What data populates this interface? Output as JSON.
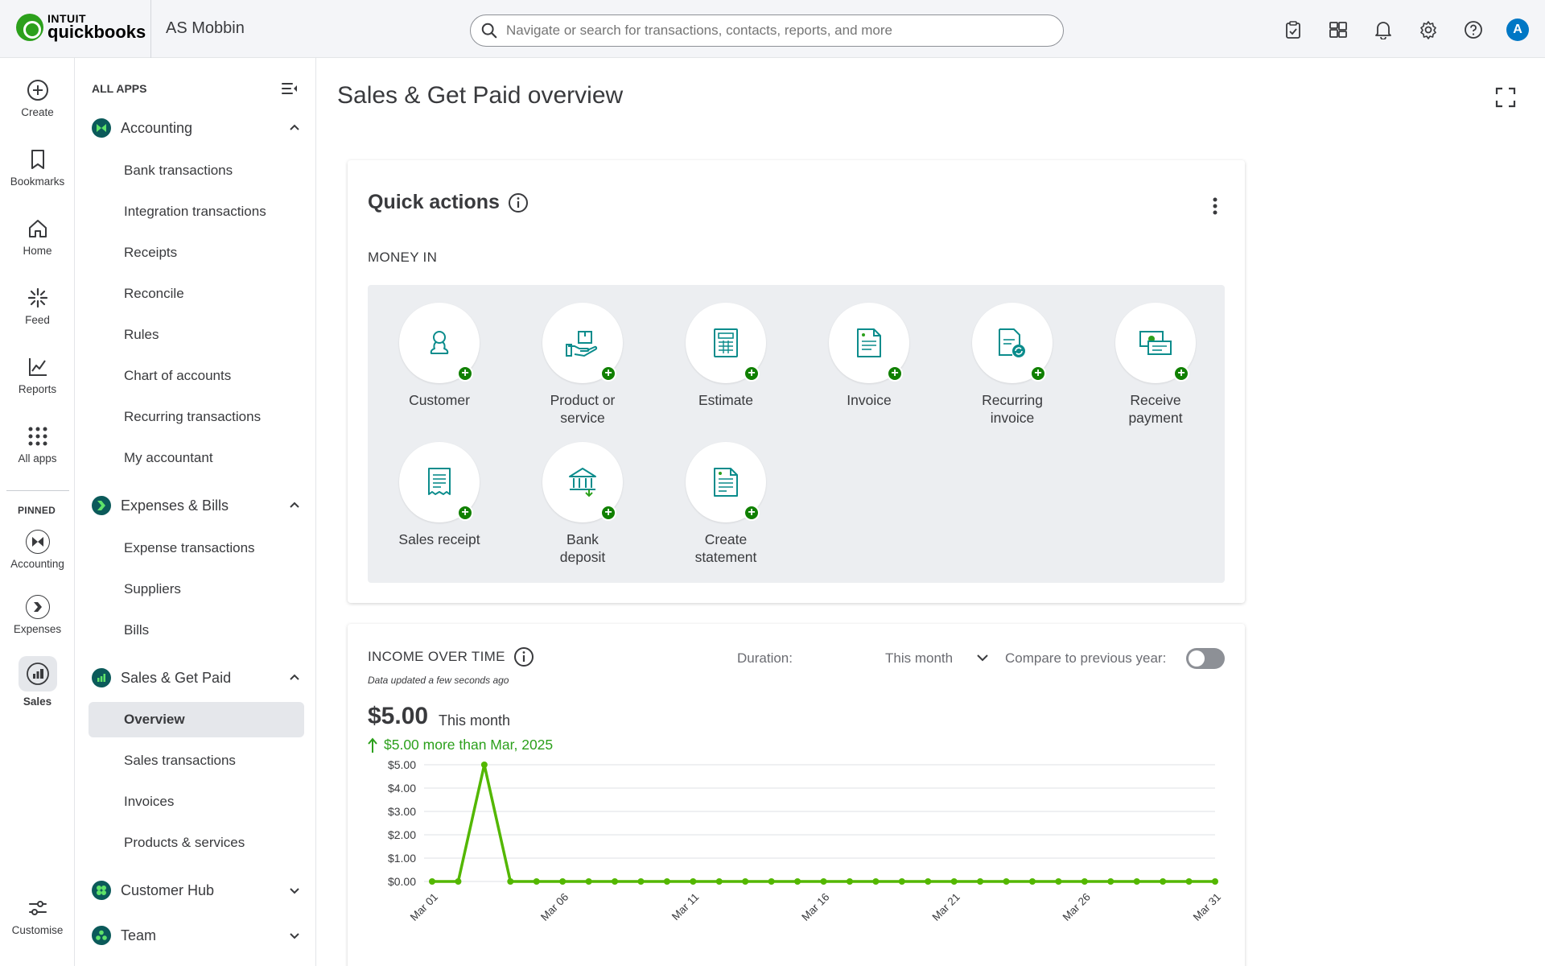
{
  "app": {
    "company": "AS Mobbin",
    "logo_top": "INTUIT",
    "logo_bottom": "quickbooks",
    "search_placeholder": "Navigate or search for transactions, contacts, reports, and more"
  },
  "rail": {
    "items": [
      {
        "label": "Create",
        "icon": "plus-circle-icon"
      },
      {
        "label": "Bookmarks",
        "icon": "bookmark-icon"
      },
      {
        "label": "Home",
        "icon": "home-icon"
      },
      {
        "label": "Feed",
        "icon": "feed-icon"
      },
      {
        "label": "Reports",
        "icon": "reports-icon"
      },
      {
        "label": "All apps",
        "icon": "grid-icon"
      }
    ],
    "pinned_label": "PINNED",
    "pinned": [
      {
        "label": "Accounting",
        "icon": "accounting-icon"
      },
      {
        "label": "Expenses",
        "icon": "expenses-icon"
      },
      {
        "label": "Sales",
        "icon": "sales-icon"
      }
    ],
    "customise": "Customise"
  },
  "sidebar": {
    "all_apps": "ALL APPS",
    "sections": [
      {
        "title": "Accounting",
        "color": "#1a3b4c",
        "items": [
          "Bank transactions",
          "Integration transactions",
          "Receipts",
          "Reconcile",
          "Rules",
          "Chart of accounts",
          "Recurring transactions",
          "My accountant"
        ]
      },
      {
        "title": "Expenses & Bills",
        "color": "#1a3b4c",
        "items": [
          "Expense transactions",
          "Suppliers",
          "Bills"
        ]
      },
      {
        "title": "Sales & Get Paid",
        "color": "#1a3b4c",
        "items": [
          "Overview",
          "Sales transactions",
          "Invoices",
          "Products & services"
        ]
      },
      {
        "title": "Customer Hub",
        "color": "#1a3b4c",
        "items": []
      },
      {
        "title": "Team",
        "color": "#1a3b4c",
        "items": []
      }
    ],
    "active_item": "Overview"
  },
  "main": {
    "title": "Sales & Get Paid overview",
    "quick_actions": {
      "title": "Quick actions",
      "section": "MONEY IN",
      "items": [
        {
          "label": "Customer",
          "icon": "customer-icon"
        },
        {
          "label": "Product or service",
          "icon": "product-icon"
        },
        {
          "label": "Estimate",
          "icon": "estimate-icon"
        },
        {
          "label": "Invoice",
          "icon": "invoice-icon"
        },
        {
          "label": "Recurring invoice",
          "icon": "recurring-invoice-icon"
        },
        {
          "label": "Receive payment",
          "icon": "receive-payment-icon"
        },
        {
          "label": "Sales receipt",
          "icon": "sales-receipt-icon"
        },
        {
          "label": "Bank deposit",
          "icon": "bank-deposit-icon"
        },
        {
          "label": "Create statement",
          "icon": "statement-icon"
        }
      ]
    },
    "income": {
      "title": "INCOME OVER TIME",
      "updated": "Data updated a few seconds ago",
      "duration_label": "Duration:",
      "duration_value": "This month",
      "compare_label": "Compare to previous year:",
      "compare_enabled": false,
      "amount": "$5.00",
      "amount_period": "This month",
      "comparison": "$5.00 more than Mar, 2025"
    }
  },
  "colors": {
    "brand_green": "#2ca01c",
    "plus_green": "#108000",
    "teal": "#0b8c8c",
    "text": "#393a3d"
  },
  "chart_data": {
    "type": "line",
    "x": [
      "Mar 01",
      "Mar 02",
      "Mar 03",
      "Mar 04",
      "Mar 05",
      "Mar 06",
      "Mar 07",
      "Mar 08",
      "Mar 09",
      "Mar 10",
      "Mar 11",
      "Mar 12",
      "Mar 13",
      "Mar 14",
      "Mar 15",
      "Mar 16",
      "Mar 17",
      "Mar 18",
      "Mar 19",
      "Mar 20",
      "Mar 21",
      "Mar 22",
      "Mar 23",
      "Mar 24",
      "Mar 25",
      "Mar 26",
      "Mar 27",
      "Mar 28",
      "Mar 29",
      "Mar 30",
      "Mar 31"
    ],
    "x_tick_labels": [
      "Mar 01",
      "Mar 06",
      "Mar 11",
      "Mar 16",
      "Mar 21",
      "Mar 26",
      "Mar 31"
    ],
    "series": [
      {
        "values": [
          0,
          0,
          5,
          0,
          0,
          0,
          0,
          0,
          0,
          0,
          0,
          0,
          0,
          0,
          0,
          0,
          0,
          0,
          0,
          0,
          0,
          0,
          0,
          0,
          0,
          0,
          0,
          0,
          0,
          0,
          0
        ],
        "color": "#53b700"
      }
    ],
    "y_ticks": [
      "$0.00",
      "$1.00",
      "$2.00",
      "$3.00",
      "$4.00",
      "$5.00"
    ],
    "ylim": [
      0,
      5
    ],
    "grid": true
  }
}
